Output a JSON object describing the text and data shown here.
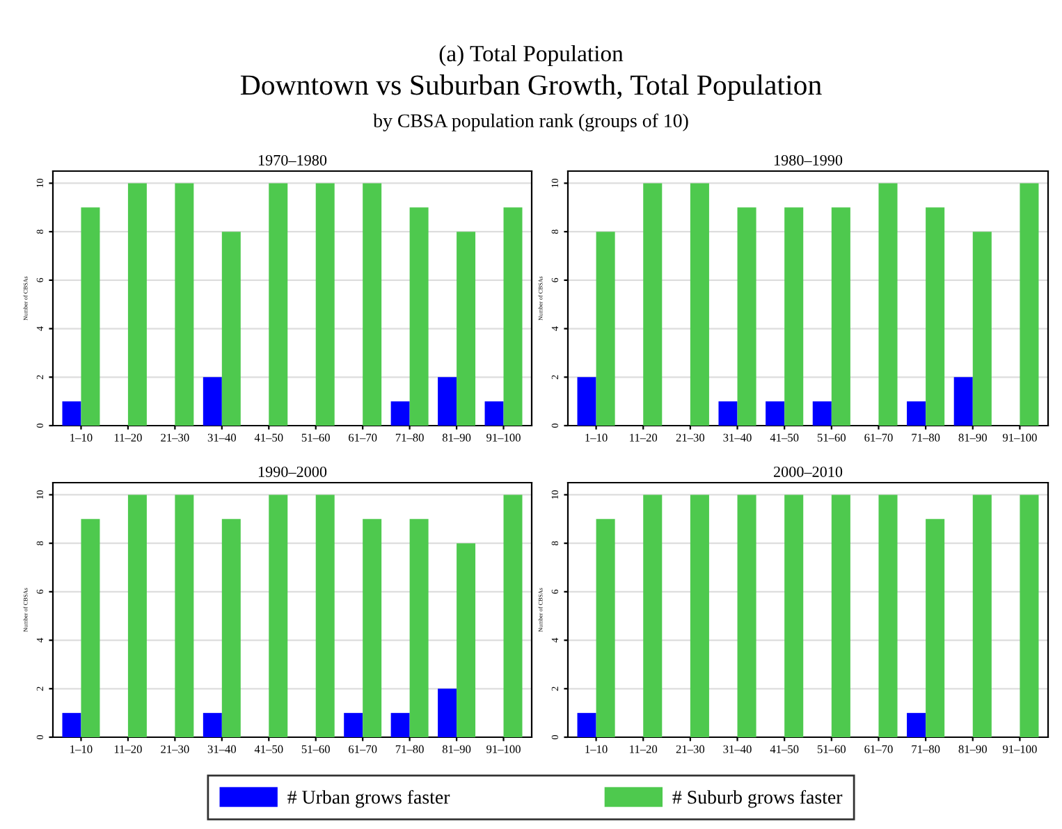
{
  "chart_data": [
    {
      "type": "bar",
      "title": "1970–1980",
      "ylabel": "Number of CBSAs",
      "annotations": [
        "(a) Total Population",
        "Downtown vs Suburban Growth, Total Population",
        "by CBSA population rank (groups of 10)"
      ],
      "categories": [
        "1–10",
        "11–20",
        "21–30",
        "31–40",
        "41–50",
        "51–60",
        "61–70",
        "71–80",
        "81–90",
        "91–100"
      ],
      "ylim": [
        0,
        10.5
      ],
      "yticks": [
        0,
        2,
        4,
        6,
        8,
        10
      ],
      "grid": "y",
      "legend": "bottom",
      "series": [
        {
          "name": "# Urban grows faster",
          "color": "#0000ff",
          "values": [
            1,
            0,
            0,
            2,
            0,
            0,
            0,
            1,
            2,
            1
          ]
        },
        {
          "name": "# Suburb grows faster",
          "color": "#4ec94e",
          "values": [
            9,
            10,
            10,
            8,
            10,
            10,
            10,
            9,
            8,
            9
          ]
        }
      ]
    },
    {
      "type": "bar",
      "title": "1980–1990",
      "ylabel": "Number of CBSAs",
      "categories": [
        "1–10",
        "11–20",
        "21–30",
        "31–40",
        "41–50",
        "51–60",
        "61–70",
        "71–80",
        "81–90",
        "91–100"
      ],
      "ylim": [
        0,
        10.5
      ],
      "yticks": [
        0,
        2,
        4,
        6,
        8,
        10
      ],
      "grid": "y",
      "series": [
        {
          "color": "#0000ff",
          "values": [
            2,
            0,
            0,
            1,
            1,
            1,
            0,
            1,
            2,
            0
          ]
        },
        {
          "color": "#4ec94e",
          "values": [
            8,
            10,
            10,
            9,
            9,
            9,
            10,
            9,
            8,
            10
          ]
        }
      ]
    },
    {
      "type": "bar",
      "title": "1990–2000",
      "ylabel": "Number of CBSAs",
      "categories": [
        "1–10",
        "11–20",
        "21–30",
        "31–40",
        "41–50",
        "51–60",
        "61–70",
        "71–80",
        "81–90",
        "91–100"
      ],
      "ylim": [
        0,
        10.5
      ],
      "yticks": [
        0,
        2,
        4,
        6,
        8,
        10
      ],
      "grid": "y",
      "series": [
        {
          "color": "#0000ff",
          "values": [
            1,
            0,
            0,
            1,
            0,
            0,
            1,
            1,
            2,
            0
          ]
        },
        {
          "color": "#4ec94e",
          "values": [
            9,
            10,
            10,
            9,
            10,
            10,
            9,
            9,
            8,
            10
          ]
        }
      ]
    },
    {
      "type": "bar",
      "title": "2000–2010",
      "ylabel": "Number of CBSAs",
      "categories": [
        "1–10",
        "11–20",
        "21–30",
        "31–40",
        "41–50",
        "51–60",
        "61–70",
        "71–80",
        "81–90",
        "91–100"
      ],
      "ylim": [
        0,
        10.5
      ],
      "yticks": [
        0,
        2,
        4,
        6,
        8,
        10
      ],
      "grid": "y",
      "series": [
        {
          "color": "#0000ff",
          "values": [
            1,
            0,
            0,
            0,
            0,
            0,
            0,
            1,
            0,
            0
          ]
        },
        {
          "color": "#4ec94e",
          "values": [
            9,
            10,
            10,
            10,
            10,
            10,
            10,
            9,
            10,
            10
          ]
        }
      ]
    }
  ]
}
